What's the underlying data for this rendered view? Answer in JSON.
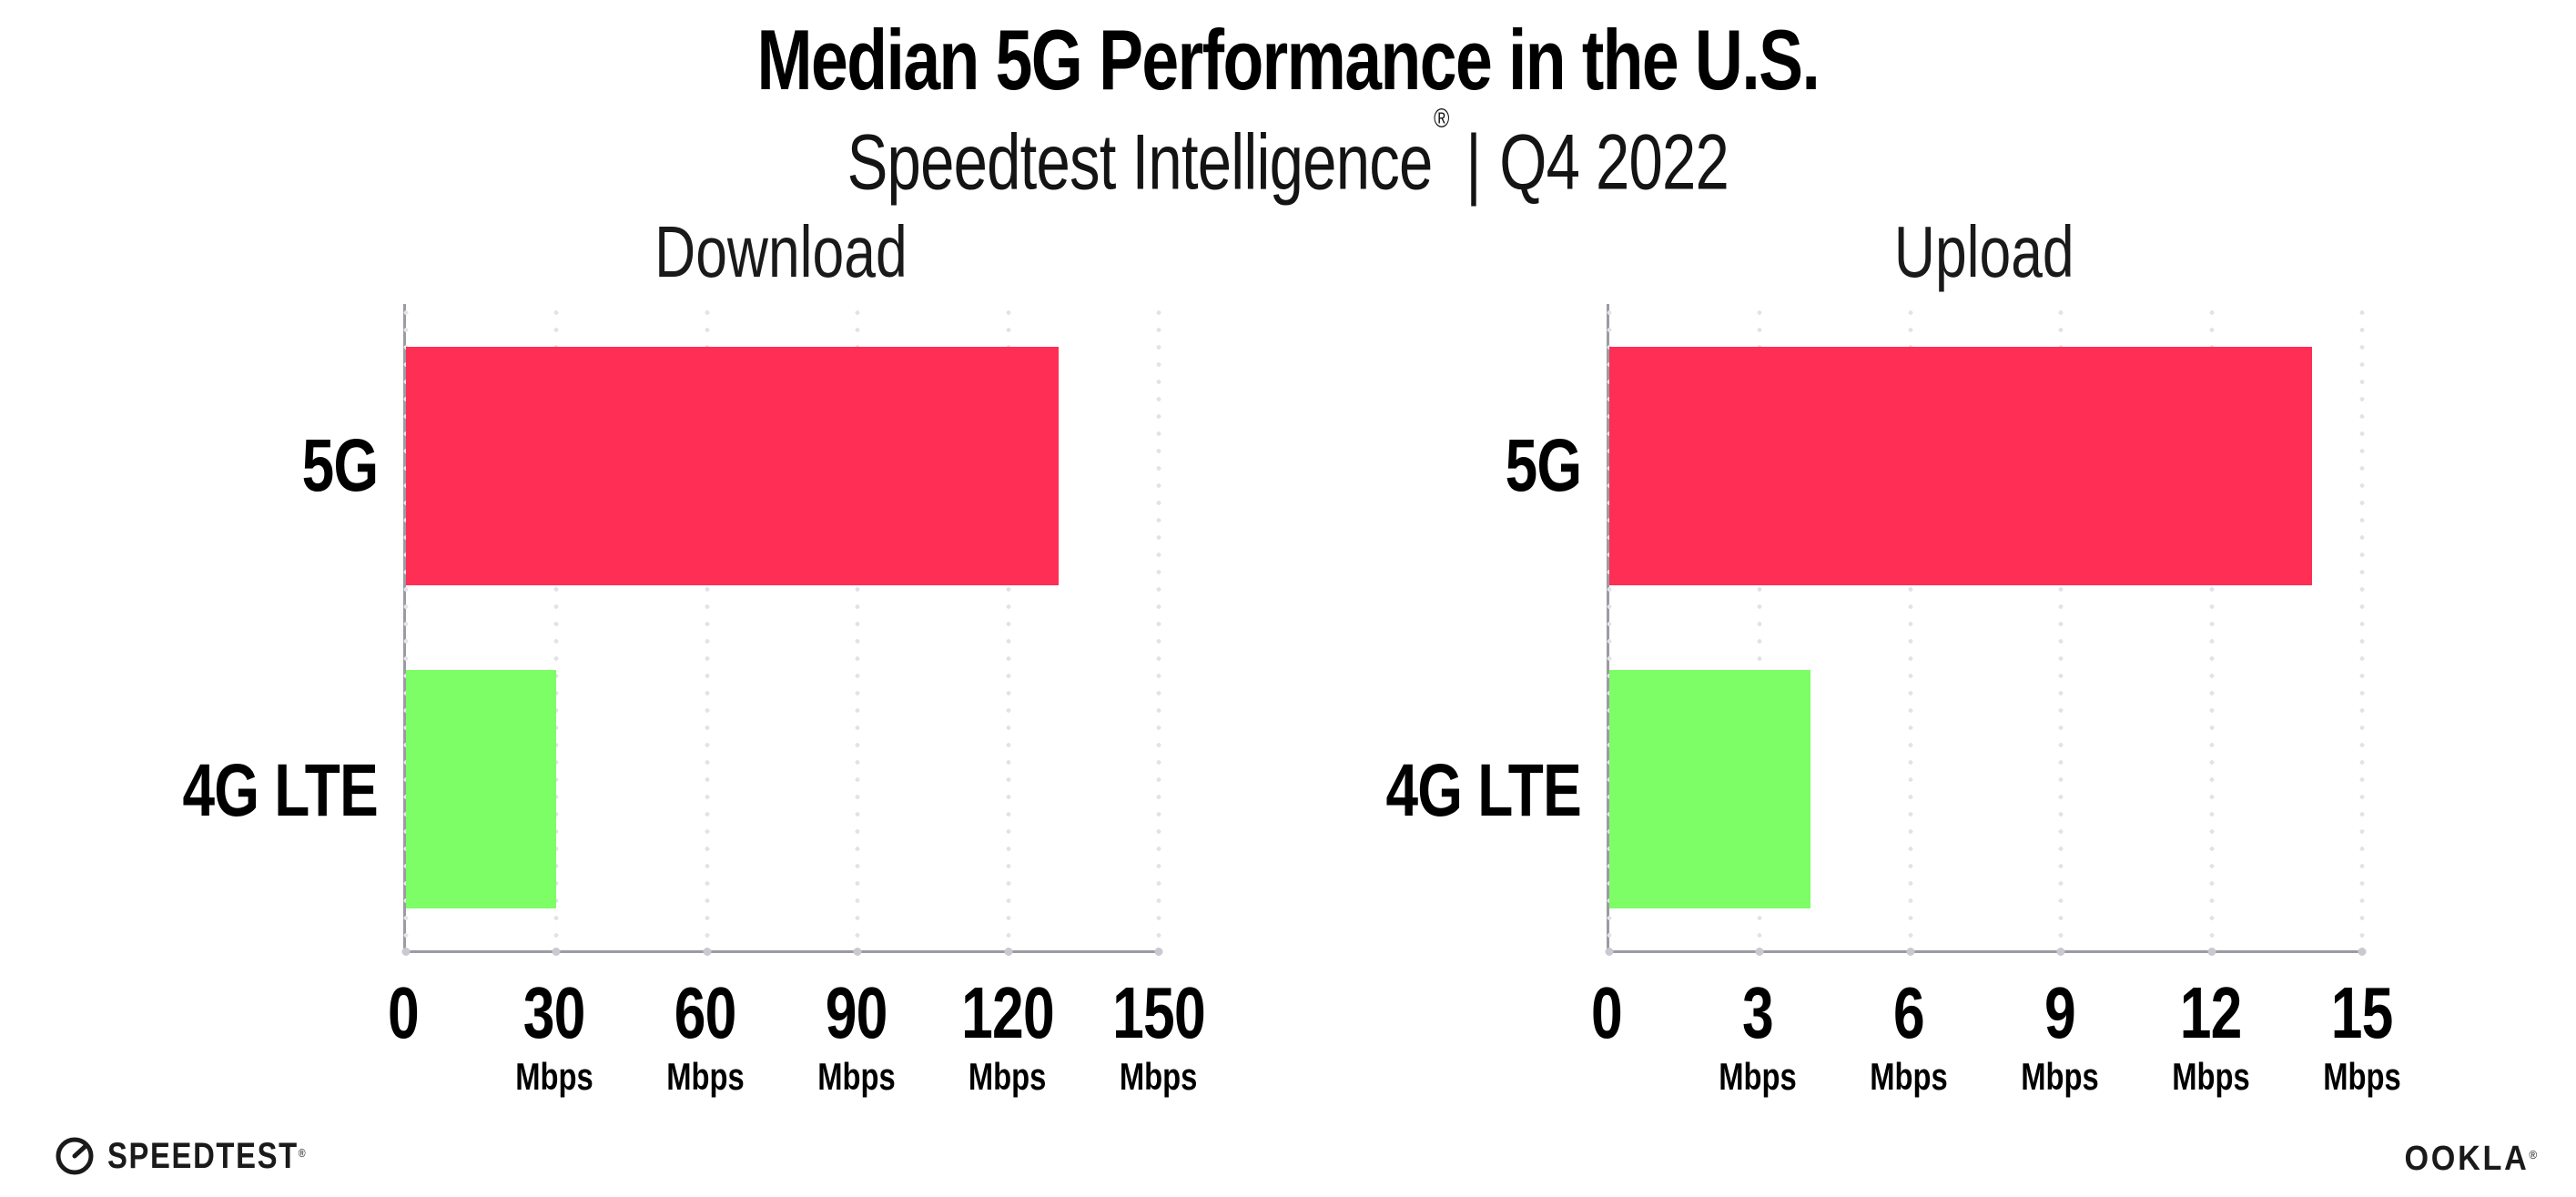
{
  "header": {
    "title": "Median 5G Performance in the U.S.",
    "subtitle_brand": "Speedtest Intelligence",
    "subtitle_reg": "®",
    "subtitle_divider": "|",
    "subtitle_period": "Q4 2022"
  },
  "footer": {
    "speedtest_logo_text": "SPEEDTEST",
    "speedtest_logo_mark": "®",
    "ookla_logo_text": "OOKLA",
    "ookla_logo_mark": "®"
  },
  "colors": {
    "bar_5g": "#FF2E55",
    "bar_4g_lte": "#7DFD66",
    "axis_line": "#9b9ba1",
    "gridline_dot": "#e2e2ea",
    "text": "#0d0d0d"
  },
  "chart_data": [
    {
      "type": "bar",
      "orientation": "horizontal",
      "title": "Download",
      "categories": [
        "5G",
        "4G LTE"
      ],
      "values": [
        130,
        30
      ],
      "unit": "Mbps",
      "xlim": [
        0,
        150
      ],
      "xticks": [
        0,
        30,
        60,
        90,
        120,
        150
      ],
      "bar_colors": [
        "#FF2E55",
        "#7DFD66"
      ],
      "grid": "dotted-vertical",
      "legend": "none"
    },
    {
      "type": "bar",
      "orientation": "horizontal",
      "title": "Upload",
      "categories": [
        "5G",
        "4G LTE"
      ],
      "values": [
        14,
        4
      ],
      "unit": "Mbps",
      "xlim": [
        0,
        15
      ],
      "xticks": [
        0,
        3,
        6,
        9,
        12,
        15
      ],
      "bar_colors": [
        "#FF2E55",
        "#7DFD66"
      ],
      "grid": "dotted-vertical",
      "legend": "none"
    }
  ]
}
